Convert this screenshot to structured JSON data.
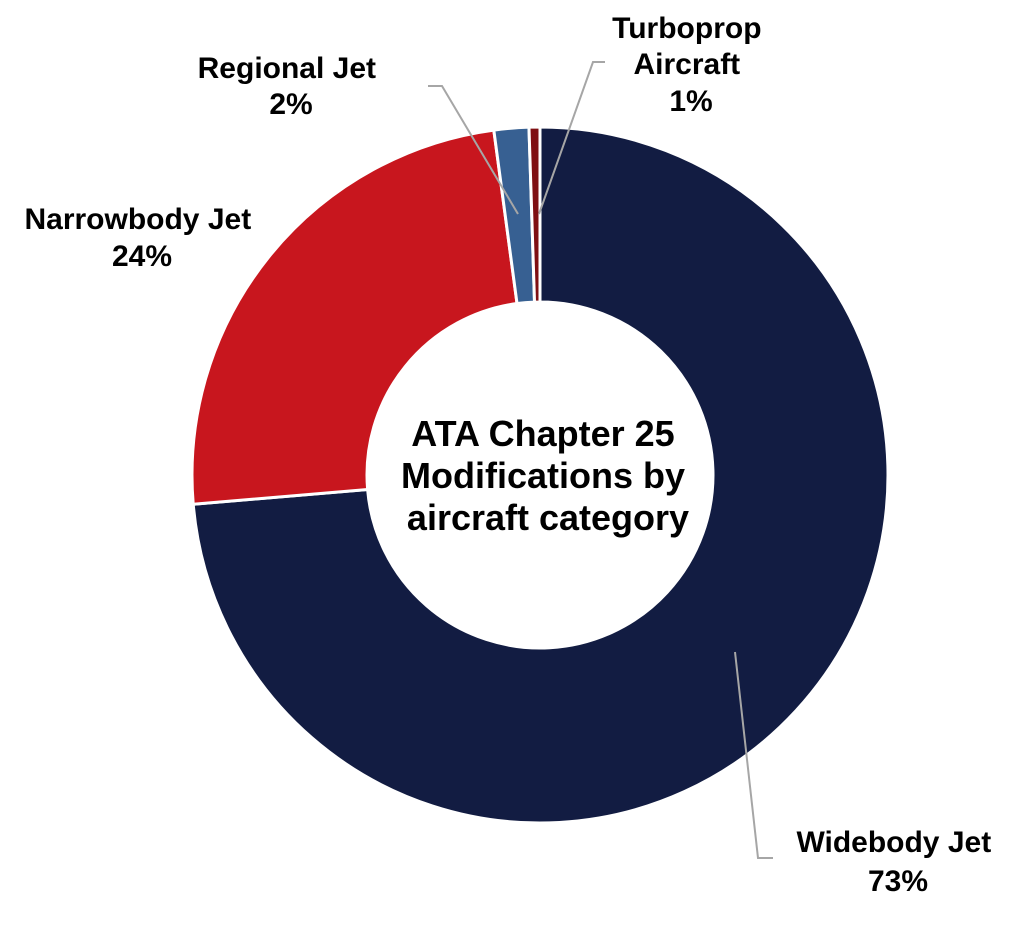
{
  "chart_data": {
    "type": "pie",
    "variant": "donut",
    "title": "ATA Chapter 25 Modifications by aircraft category",
    "title_lines": [
      "ATA Chapter 25",
      "Modifications by",
      "aircraft category"
    ],
    "slices": [
      {
        "category": "Widebody Jet",
        "label_lines": [
          "Widebody Jet"
        ],
        "percent_label": "73%",
        "value": 73,
        "color": "#121c42"
      },
      {
        "category": "Narrowbody Jet",
        "label_lines": [
          "Narrowbody Jet"
        ],
        "percent_label": "24%",
        "value": 24,
        "color": "#c8161e"
      },
      {
        "category": "Regional Jet",
        "label_lines": [
          "Regional Jet"
        ],
        "percent_label": "2%",
        "value": 1.6,
        "color": "#376092"
      },
      {
        "category": "Turboprop Aircraft",
        "label_lines": [
          "Turboprop",
          "Aircraft"
        ],
        "percent_label": "1%",
        "value": 0.5,
        "color": "#7f0f13"
      }
    ],
    "start": "12 o'clock",
    "direction": "clockwise",
    "legend": "none"
  }
}
